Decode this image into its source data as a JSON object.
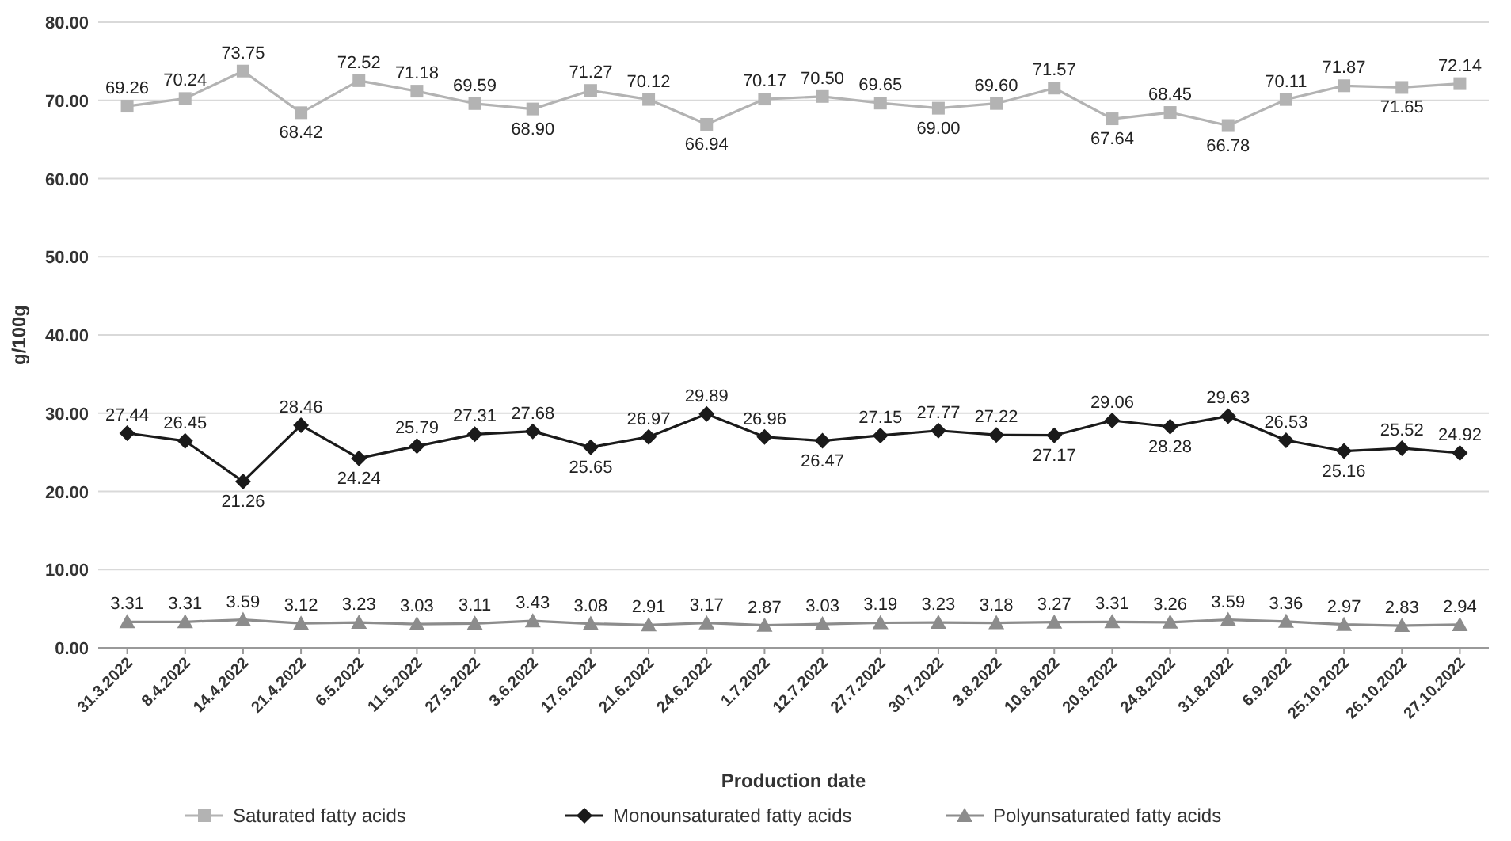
{
  "chart_data": {
    "type": "line",
    "xlabel": "Production date",
    "ylabel": "g/100g",
    "categories": [
      "31.3.2022",
      "8.4.2022",
      "14.4.2022",
      "21.4.2022",
      "6.5.2022",
      "11.5.2022",
      "27.5.2022",
      "3.6.2022",
      "17.6.2022",
      "21.6.2022",
      "24.6.2022",
      "1.7.2022",
      "12.7.2022",
      "27.7.2022",
      "30.7.2022",
      "3.8.2022",
      "10.8.2022",
      "20.8.2022",
      "24.8.2022",
      "31.8.2022",
      "6.9.2022",
      "25.10.2022",
      "26.10.2022",
      "27.10.2022"
    ],
    "series": [
      {
        "name": "Saturated fatty acids",
        "color": "#b3b3b3",
        "marker": "square",
        "values": [
          69.26,
          70.24,
          73.75,
          68.42,
          72.52,
          71.18,
          69.59,
          68.9,
          71.27,
          70.12,
          66.94,
          70.17,
          70.5,
          69.65,
          69.0,
          69.6,
          71.57,
          67.64,
          68.45,
          66.78,
          70.11,
          71.87,
          71.65,
          72.14
        ],
        "value_labels": [
          "69.26",
          "70.24",
          "73.75",
          "68.42",
          "72.52",
          "71.18",
          "69.59",
          "68.90",
          "71.27",
          "70.12",
          "66.94",
          "70.17",
          "70.50",
          "69.65",
          "69.00",
          "69.60",
          "71.57",
          "67.64",
          "68.45",
          "66.78",
          "70.11",
          "71.87",
          "71.65",
          "72.14"
        ]
      },
      {
        "name": "Monounsaturated fatty acids",
        "color": "#1a1a1a",
        "marker": "diamond",
        "values": [
          27.44,
          26.45,
          21.26,
          28.46,
          24.24,
          25.79,
          27.31,
          27.68,
          25.65,
          26.97,
          29.89,
          26.96,
          26.47,
          27.15,
          27.77,
          27.22,
          27.17,
          29.06,
          28.28,
          29.63,
          26.53,
          25.16,
          25.52,
          24.92
        ],
        "value_labels": [
          "27.44",
          "26.45",
          "21.26",
          "28.46",
          "24.24",
          "25.79",
          "27.31",
          "27.68",
          "25.65",
          "26.97",
          "29.89",
          "26.96",
          "26.47",
          "27.15",
          "27.77",
          "27.22",
          "27.17",
          "29.06",
          "28.28",
          "29.63",
          "26.53",
          "25.16",
          "25.52",
          "24.92"
        ]
      },
      {
        "name": "Polyunsaturated fatty acids",
        "color": "#8c8c8c",
        "marker": "triangle",
        "values": [
          3.31,
          3.31,
          3.59,
          3.12,
          3.23,
          3.03,
          3.11,
          3.43,
          3.08,
          2.91,
          3.17,
          2.87,
          3.03,
          3.19,
          3.23,
          3.18,
          3.27,
          3.31,
          3.26,
          3.59,
          3.36,
          2.97,
          2.83,
          2.94
        ],
        "value_labels": [
          "3.31",
          "3.31",
          "3.59",
          "3.12",
          "3.23",
          "3.03",
          "3.11",
          "3.43",
          "3.08",
          "2.91",
          "3.17",
          "2.87",
          "3.03",
          "3.19",
          "3.23",
          "3.18",
          "3.27",
          "3.31",
          "3.26",
          "3.59",
          "3.36",
          "2.97",
          "2.83",
          "2.94"
        ]
      }
    ],
    "ylim": [
      0,
      80
    ],
    "yticks": [
      {
        "value": 0,
        "label": "0.00"
      },
      {
        "value": 10,
        "label": "10.00"
      },
      {
        "value": 20,
        "label": "20.00"
      },
      {
        "value": 30,
        "label": "30.00"
      },
      {
        "value": 40,
        "label": "40.00"
      },
      {
        "value": 50,
        "label": "50.00"
      },
      {
        "value": 60,
        "label": "60.00"
      },
      {
        "value": 70,
        "label": "70.00"
      },
      {
        "value": 80,
        "label": "80.00"
      }
    ],
    "grid": "y",
    "legend": "bottom",
    "line_style": "solid"
  }
}
